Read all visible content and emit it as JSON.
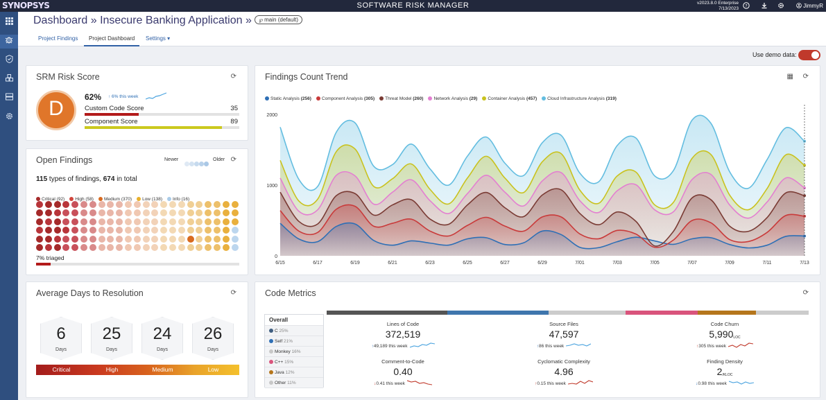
{
  "topbar": {
    "logo": "SYNOPSYS",
    "title": "SOFTWARE RISK MANAGER",
    "version_line1": "v2023.8.0 Enterprise",
    "version_line2": "7/13/2023",
    "user": "JimmyR",
    "icons": [
      "help-icon",
      "download-icon",
      "gear-icon",
      "user-icon"
    ]
  },
  "sidebar": {
    "items": [
      "dashboard-grid-icon",
      "bug-icon",
      "shield-icon",
      "components-icon",
      "server-icon",
      "gear-icon"
    ]
  },
  "header": {
    "crumb": "Dashboard » Insecure Banking Application »",
    "branch_symbol": "℘",
    "branch": "main (default)",
    "tabs": [
      {
        "label": "Project Findings"
      },
      {
        "label": "Project Dashboard"
      },
      {
        "label": "Settings ▾"
      }
    ]
  },
  "demo": {
    "label": "Use demo data:",
    "enabled": true
  },
  "risk": {
    "title": "SRM Risk Score",
    "grade": "D",
    "percent": "62%",
    "trend": "↑ 6% this week",
    "custom_label": "Custom Code Score",
    "custom_value": "35",
    "custom_fraction": 0.35,
    "component_label": "Component Score",
    "component_value": "89",
    "component_fraction": 0.89
  },
  "open": {
    "title": "Open Findings",
    "newer": "Newer",
    "older": "Older",
    "types": "115",
    "types_text": " types of findings, ",
    "total": "674",
    "total_text": " in total",
    "legend": [
      {
        "label": "Critical (92)",
        "color": "#a52a2a"
      },
      {
        "label": "High (58)",
        "color": "#d0453b"
      },
      {
        "label": "Medium (370)",
        "color": "#d86a1f"
      },
      {
        "label": "Low (138)",
        "color": "#e8b02b"
      },
      {
        "label": "Info (16)",
        "color": "#a9cbe8"
      }
    ],
    "triaged": "7% triaged",
    "triaged_fraction": 0.07
  },
  "days": {
    "title": "Average Days to Resolution",
    "unit": "Days",
    "items": [
      {
        "value": "6",
        "label": "Critical"
      },
      {
        "value": "25",
        "label": "High"
      },
      {
        "value": "24",
        "label": "Medium"
      },
      {
        "value": "26",
        "label": "Low"
      }
    ]
  },
  "trend": {
    "title": "Findings Count Trend",
    "legend": [
      {
        "label": "Static Analysis",
        "count": "(256)",
        "color": "#2e6fb5"
      },
      {
        "label": "Component Analysis",
        "count": "(305)",
        "color": "#c93a3a"
      },
      {
        "label": "Threat Model",
        "count": "(260)",
        "color": "#7a3b34"
      },
      {
        "label": "Network Analysis",
        "count": "(29)",
        "color": "#e37fd1"
      },
      {
        "label": "Container Analysis",
        "count": "(457)",
        "color": "#c9c21e"
      },
      {
        "label": "Cloud Infrastructure Analysis",
        "count": "(319)",
        "color": "#63bde0"
      }
    ]
  },
  "chart_data": {
    "type": "area",
    "ylim": [
      0,
      2000
    ],
    "yticks": [
      "0",
      "1000",
      "2000"
    ],
    "categories": [
      "6/15",
      "6/17",
      "6/19",
      "6/21",
      "6/23",
      "6/25",
      "6/27",
      "6/29",
      "7/01",
      "7/03",
      "7/05",
      "7/07",
      "7/09",
      "7/11",
      "7/13"
    ],
    "series": [
      {
        "name": "Static Analysis",
        "color": "#2e6fb5",
        "values": [
          460,
          200,
          450,
          150,
          180,
          240,
          160,
          350,
          120,
          200,
          210,
          240,
          160,
          150,
          280
        ]
      },
      {
        "name": "Component Analysis",
        "color": "#c93a3a",
        "values": [
          640,
          330,
          700,
          460,
          350,
          430,
          420,
          550,
          310,
          360,
          120,
          500,
          230,
          330,
          560
        ]
      },
      {
        "name": "Threat Model",
        "color": "#7a3b34",
        "values": [
          900,
          450,
          880,
          720,
          520,
          720,
          680,
          860,
          600,
          620,
          140,
          820,
          420,
          540,
          850
        ]
      },
      {
        "name": "Network Analysis",
        "color": "#e37fd1",
        "values": [
          1100,
          650,
          1130,
          900,
          780,
          880,
          900,
          1060,
          780,
          920,
          650,
          1080,
          720,
          760,
          960
        ]
      },
      {
        "name": "Container Analysis",
        "color": "#c9c21e",
        "values": [
          1350,
          800,
          1510,
          1090,
          940,
          1100,
          1100,
          1330,
          930,
          1130,
          720,
          1380,
          860,
          950,
          1280
        ]
      },
      {
        "name": "Cloud Infrastructure Analysis",
        "color": "#63bde0",
        "values": [
          1820,
          980,
          1880,
          1290,
          1230,
          1410,
          1310,
          1600,
          1170,
          1560,
          1130,
          1920,
          1190,
          1360,
          1620
        ]
      }
    ]
  },
  "code": {
    "title": "Code Metrics",
    "languages": [
      {
        "name": "Overall",
        "pct": "",
        "color": ""
      },
      {
        "name": "C",
        "pct": "25%",
        "color": "#3f5e80"
      },
      {
        "name": "Self",
        "pct": "21%",
        "color": "#2e6fb5"
      },
      {
        "name": "Monkey",
        "pct": "16%",
        "color": "#c8c8c8"
      },
      {
        "name": "C++",
        "pct": "15%",
        "color": "#d9547c"
      },
      {
        "name": "Java",
        "pct": "12%",
        "color": "#b5761c"
      },
      {
        "name": "Other",
        "pct": "11%",
        "color": "#c8c8c8"
      }
    ],
    "bar": [
      {
        "fraction": 0.25,
        "color": "#555555"
      },
      {
        "fraction": 0.21,
        "color": "#3f76ad"
      },
      {
        "fraction": 0.16,
        "color": "#cccccc"
      },
      {
        "fraction": 0.15,
        "color": "#d9547c"
      },
      {
        "fraction": 0.12,
        "color": "#b5761c"
      },
      {
        "fraction": 0.11,
        "color": "#cccccc"
      }
    ],
    "metrics": [
      {
        "label": "Lines of Code",
        "value": "372,519",
        "unit": "",
        "arrow": "↑",
        "delta": "49,189 this week",
        "arrow_color": "#2e6fb5",
        "spark": "#4aa3df"
      },
      {
        "label": "Source Files",
        "value": "47,597",
        "unit": "",
        "arrow": "↑",
        "delta": "86 this week",
        "arrow_color": "#2e6fb5",
        "spark": "#4aa3df"
      },
      {
        "label": "Code Churn",
        "value": "5,990",
        "unit": "LOC",
        "arrow": "↑",
        "delta": "305 this week",
        "arrow_color": "#c0392b",
        "spark": "#c0392b"
      },
      {
        "label": "Comment-to-Code",
        "value": "0.40",
        "unit": "",
        "arrow": "↓",
        "delta": "0.41 this week",
        "arrow_color": "#c0392b",
        "spark": "#c0392b"
      },
      {
        "label": "Cyclomatic Complexity",
        "value": "4.96",
        "unit": "",
        "arrow": "↑",
        "delta": "0.15 this week",
        "arrow_color": "#c0392b",
        "spark": "#c0392b"
      },
      {
        "label": "Finding Density",
        "value": "2",
        "unit": "/KLOC",
        "arrow": "↓",
        "delta": "0.98 this week",
        "arrow_color": "#2e6fb5",
        "spark": "#4aa3df"
      }
    ]
  }
}
